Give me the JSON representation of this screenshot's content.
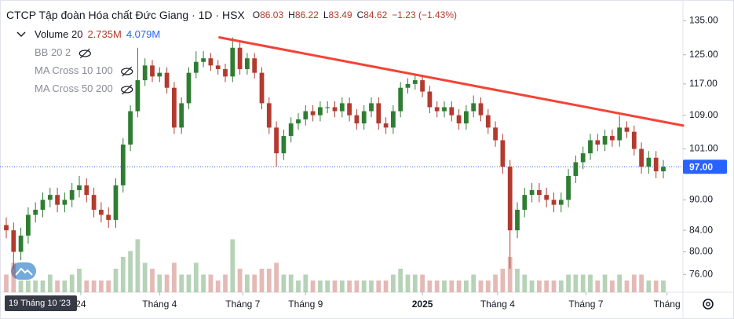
{
  "chart_data": {
    "type": "candlestick",
    "title": "CTCP Tập đoàn Hóa chất Đức Giang · 1D · HSX",
    "ohlc_legend": [
      {
        "label": "O",
        "value": 86.03
      },
      {
        "label": "H",
        "value": 86.22
      },
      {
        "label": "L",
        "value": 83.49
      },
      {
        "label": "C",
        "value": 84.62
      }
    ],
    "change": "−1.23 (−1.43%)",
    "indicators": [
      {
        "name": "Volume 20",
        "values": [
          "2.735M",
          "4.079M"
        ]
      },
      {
        "name": "BB 20 2"
      },
      {
        "name": "MA Cross 10 100"
      },
      {
        "name": "MA Cross 50 200"
      }
    ],
    "up_color": "#2e7d32",
    "down_color": "#b23a2e",
    "open": [
      85,
      84,
      80,
      83,
      87,
      88,
      90,
      91,
      89,
      90,
      92,
      93,
      91,
      88,
      87,
      86,
      93,
      102,
      110,
      118,
      122,
      119,
      120,
      116,
      106,
      112,
      120,
      123,
      124,
      122,
      121,
      119,
      127,
      121,
      124,
      120,
      112,
      106,
      100,
      104,
      107,
      108,
      110,
      109,
      111,
      111,
      110,
      112,
      109,
      107,
      110,
      112,
      107,
      106,
      110,
      116,
      117,
      118,
      115,
      111,
      110,
      111,
      109,
      107,
      110,
      112,
      109,
      106,
      103,
      97,
      84,
      88,
      91,
      92,
      91,
      90,
      89,
      90,
      95,
      98,
      100,
      103,
      102,
      104,
      103,
      106,
      105,
      101,
      97,
      99,
      96
    ],
    "high": [
      86.5,
      85.5,
      84.5,
      88.5,
      89.5,
      91.5,
      92.5,
      92.5,
      91.5,
      93.5,
      95,
      94.5,
      92.5,
      89.5,
      88.5,
      94.5,
      103.5,
      111.5,
      127,
      124,
      123.5,
      121.5,
      121.5,
      117.5,
      113.5,
      121.5,
      126,
      126,
      125.5,
      123.5,
      122.5,
      130,
      128.5,
      125.5,
      125.5,
      121.5,
      113.5,
      107.5,
      105.5,
      108.5,
      109.5,
      111.5,
      111.5,
      112.5,
      112.5,
      112.5,
      113.5,
      113.5,
      110.5,
      111.5,
      113.5,
      113.5,
      108.5,
      111.5,
      117.5,
      118.5,
      119.5,
      119.5,
      116.5,
      112.5,
      112.5,
      112.5,
      110.5,
      111.5,
      114,
      113.5,
      110.5,
      107.5,
      104.5,
      98.5,
      89.5,
      92.5,
      93.5,
      93.5,
      92.5,
      91.5,
      91.5,
      96.5,
      99.5,
      101.5,
      104.5,
      104.5,
      105.5,
      105.5,
      109,
      107.5,
      106.5,
      102.5,
      100.5,
      100.5,
      98.5
    ],
    "low": [
      82.5,
      77,
      78.5,
      81.5,
      85.5,
      86.5,
      88.5,
      87.5,
      87.5,
      88.5,
      90.5,
      89.5,
      86.5,
      85.5,
      84.5,
      84.5,
      91.5,
      100.5,
      108.5,
      116.5,
      117.5,
      117.5,
      114.5,
      104.5,
      104.5,
      110.5,
      118.5,
      121.5,
      120.5,
      119.5,
      117.5,
      117.5,
      119.5,
      119.5,
      118.5,
      110.5,
      104.5,
      97,
      98.5,
      102.5,
      105.5,
      106.5,
      107.5,
      107.5,
      109.5,
      108.5,
      108.5,
      107.5,
      105.5,
      105.5,
      108.5,
      105.5,
      104.5,
      104.5,
      108.5,
      114.5,
      115.5,
      113.5,
      109.5,
      108.5,
      108.5,
      107.5,
      105.5,
      105.5,
      108.5,
      107.5,
      104.5,
      101.5,
      95.5,
      77,
      82.5,
      86.5,
      89.5,
      89.5,
      88.5,
      87.5,
      87.5,
      88.5,
      93.5,
      96.5,
      98.5,
      100.5,
      100.5,
      101.5,
      101.5,
      103.5,
      99.5,
      95.5,
      95.5,
      94.5,
      94.5
    ],
    "close": [
      84,
      80,
      83,
      87,
      88,
      90,
      91,
      89,
      90,
      92,
      93,
      91,
      88,
      87,
      86,
      93,
      102,
      110,
      118,
      122,
      119,
      120,
      116,
      106,
      112,
      120,
      123,
      124,
      122,
      121,
      119,
      127,
      121,
      124,
      120,
      112,
      106,
      100,
      104,
      107,
      108,
      110,
      109,
      111,
      111,
      110,
      112,
      109,
      107,
      110,
      112,
      107,
      106,
      110,
      116,
      117,
      118,
      115,
      111,
      110,
      111,
      109,
      107,
      110,
      112,
      109,
      106,
      103,
      97,
      84,
      88,
      91,
      92,
      91,
      90,
      89,
      90,
      95,
      98,
      100,
      103,
      102,
      104,
      103,
      106,
      105,
      101,
      97,
      99,
      96,
      97
    ],
    "volume": [
      3,
      5,
      2,
      2,
      2,
      2,
      3,
      2,
      2,
      3,
      4,
      2,
      2,
      2,
      2,
      4,
      6,
      7,
      9,
      5,
      4,
      3,
      3,
      5,
      3,
      3,
      5,
      3,
      3,
      2,
      3,
      9,
      4,
      3,
      3,
      4,
      4,
      5,
      3,
      3,
      2,
      3,
      2,
      2,
      2,
      2,
      2,
      2,
      2,
      2,
      2,
      2,
      2,
      3,
      4,
      3,
      3,
      3,
      2,
      2,
      2,
      2,
      2,
      2,
      3,
      2,
      2,
      3,
      4,
      6,
      4,
      3,
      2,
      2,
      2,
      2,
      2,
      3,
      3,
      3,
      3,
      2,
      3,
      2,
      3,
      2,
      3,
      3,
      2,
      2,
      2
    ],
    "volume_lim": [
      0,
      12
    ],
    "log_scale": true,
    "grid": false,
    "ylim": [
      73,
      141.5
    ],
    "yticks": [
      {
        "value": 135,
        "label": "135.00"
      },
      {
        "value": 125,
        "label": "125.00"
      },
      {
        "value": 117,
        "label": "117.00"
      },
      {
        "value": 109,
        "label": "109.00"
      },
      {
        "value": 101,
        "label": "101.00"
      },
      {
        "value": 90,
        "label": "90.00"
      },
      {
        "value": 84,
        "label": "84.00"
      },
      {
        "value": 80,
        "label": "80.00"
      },
      {
        "value": 76,
        "label": "76.00"
      }
    ],
    "last_price": {
      "value": 97,
      "label": "97.00"
    },
    "xlim": [
      -0.86,
      92.69
    ],
    "xticks": [
      {
        "value": 10.2,
        "label": "24"
      },
      {
        "value": 21,
        "label": "Tháng 4"
      },
      {
        "value": 32.4,
        "label": "Tháng 7"
      },
      {
        "value": 41,
        "label": "Tháng 9"
      },
      {
        "value": 57,
        "label": "2025",
        "bold": true
      },
      {
        "value": 67.3,
        "label": "Tháng 4"
      },
      {
        "value": 79.4,
        "label": "Tháng 7"
      },
      {
        "value": 90.5,
        "label": "Tháng"
      }
    ],
    "crosshair_label": "19 Tháng 10 '23",
    "trendline": {
      "color": "#f44336",
      "x": [
        29.2,
        92.69
      ],
      "y": [
        130,
        106.5
      ]
    }
  }
}
